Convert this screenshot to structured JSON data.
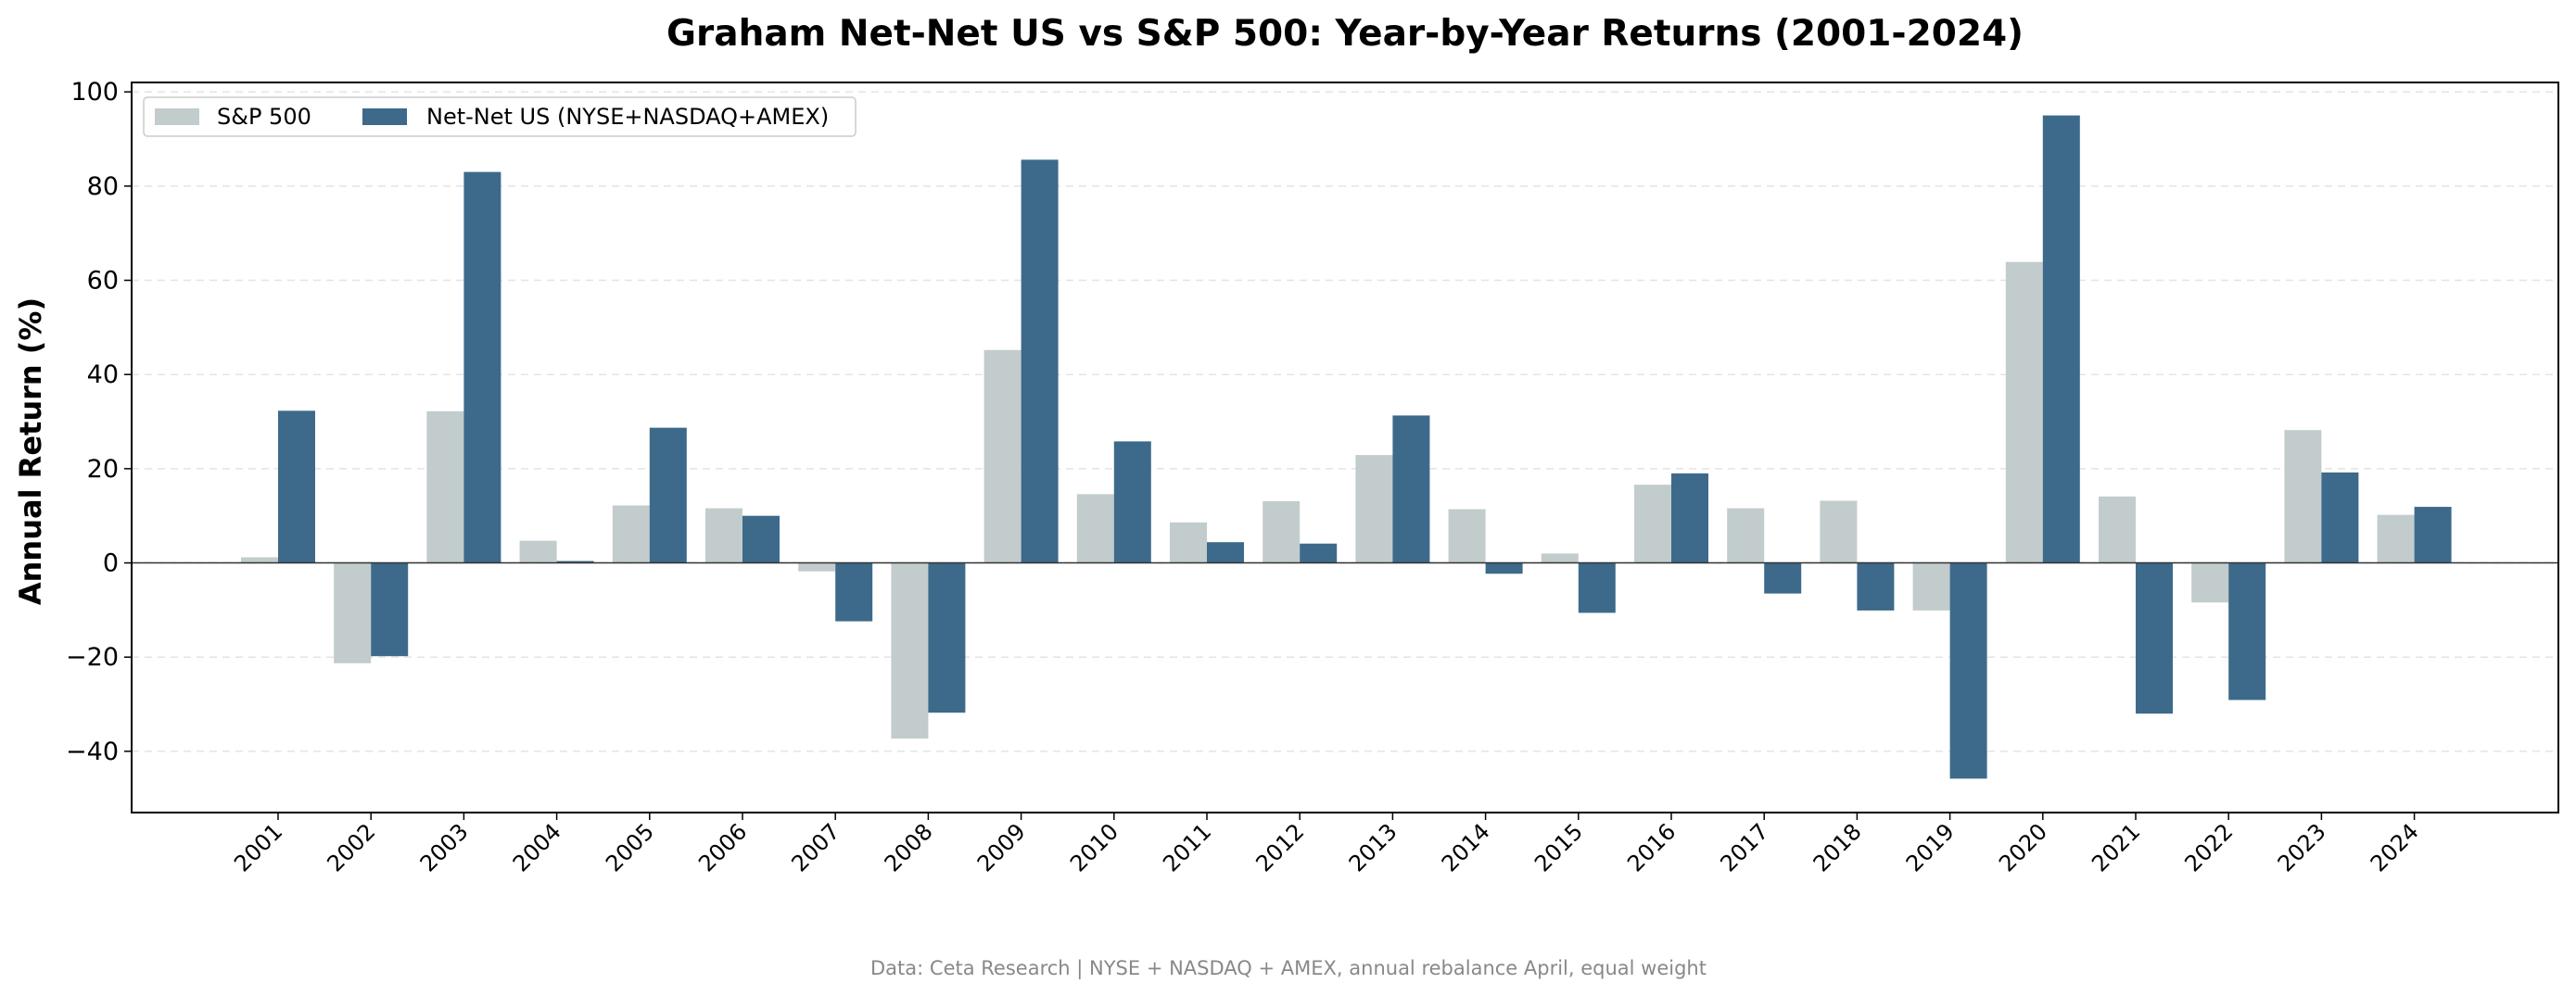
{
  "chart_data": {
    "type": "bar",
    "title": "Graham Net-Net US vs S&P 500: Year-by-Year Returns (2001-2024)",
    "xlabel": "",
    "ylabel": "Annual Return (%)",
    "ylim": [
      -53,
      102
    ],
    "yticks": [
      -40,
      -20,
      0,
      20,
      40,
      60,
      80,
      100
    ],
    "grid": "y-dashed",
    "legend_position": "top-left",
    "categories": [
      "2001",
      "2002",
      "2003",
      "2004",
      "2005",
      "2006",
      "2007",
      "2008",
      "2009",
      "2010",
      "2011",
      "2012",
      "2013",
      "2014",
      "2015",
      "2016",
      "2017",
      "2018",
      "2019",
      "2020",
      "2021",
      "2022",
      "2023",
      "2024"
    ],
    "series": [
      {
        "name": "S&P 500",
        "color": "#c2cccc",
        "values": [
          1.2,
          -21.3,
          32.2,
          4.7,
          12.2,
          11.6,
          -1.8,
          -37.3,
          45.2,
          14.6,
          8.6,
          13.1,
          22.9,
          11.4,
          2.0,
          16.6,
          11.6,
          13.2,
          -10.1,
          63.9,
          14.1,
          -8.4,
          28.2,
          10.2
        ]
      },
      {
        "name": "Net-Net US (NYSE+NASDAQ+AMEX)",
        "color": "#3d6a8a",
        "values": [
          32.3,
          -19.8,
          83.0,
          0.4,
          28.7,
          10.0,
          -12.4,
          -31.8,
          85.6,
          25.8,
          4.4,
          4.1,
          31.3,
          -2.3,
          -10.6,
          19.0,
          -6.5,
          -10.1,
          -45.8,
          95.0,
          -32.0,
          -29.1,
          19.2,
          11.9
        ]
      }
    ],
    "source_note": "Data: Ceta Research | NYSE + NASDAQ + AMEX, annual rebalance April, equal weight"
  }
}
